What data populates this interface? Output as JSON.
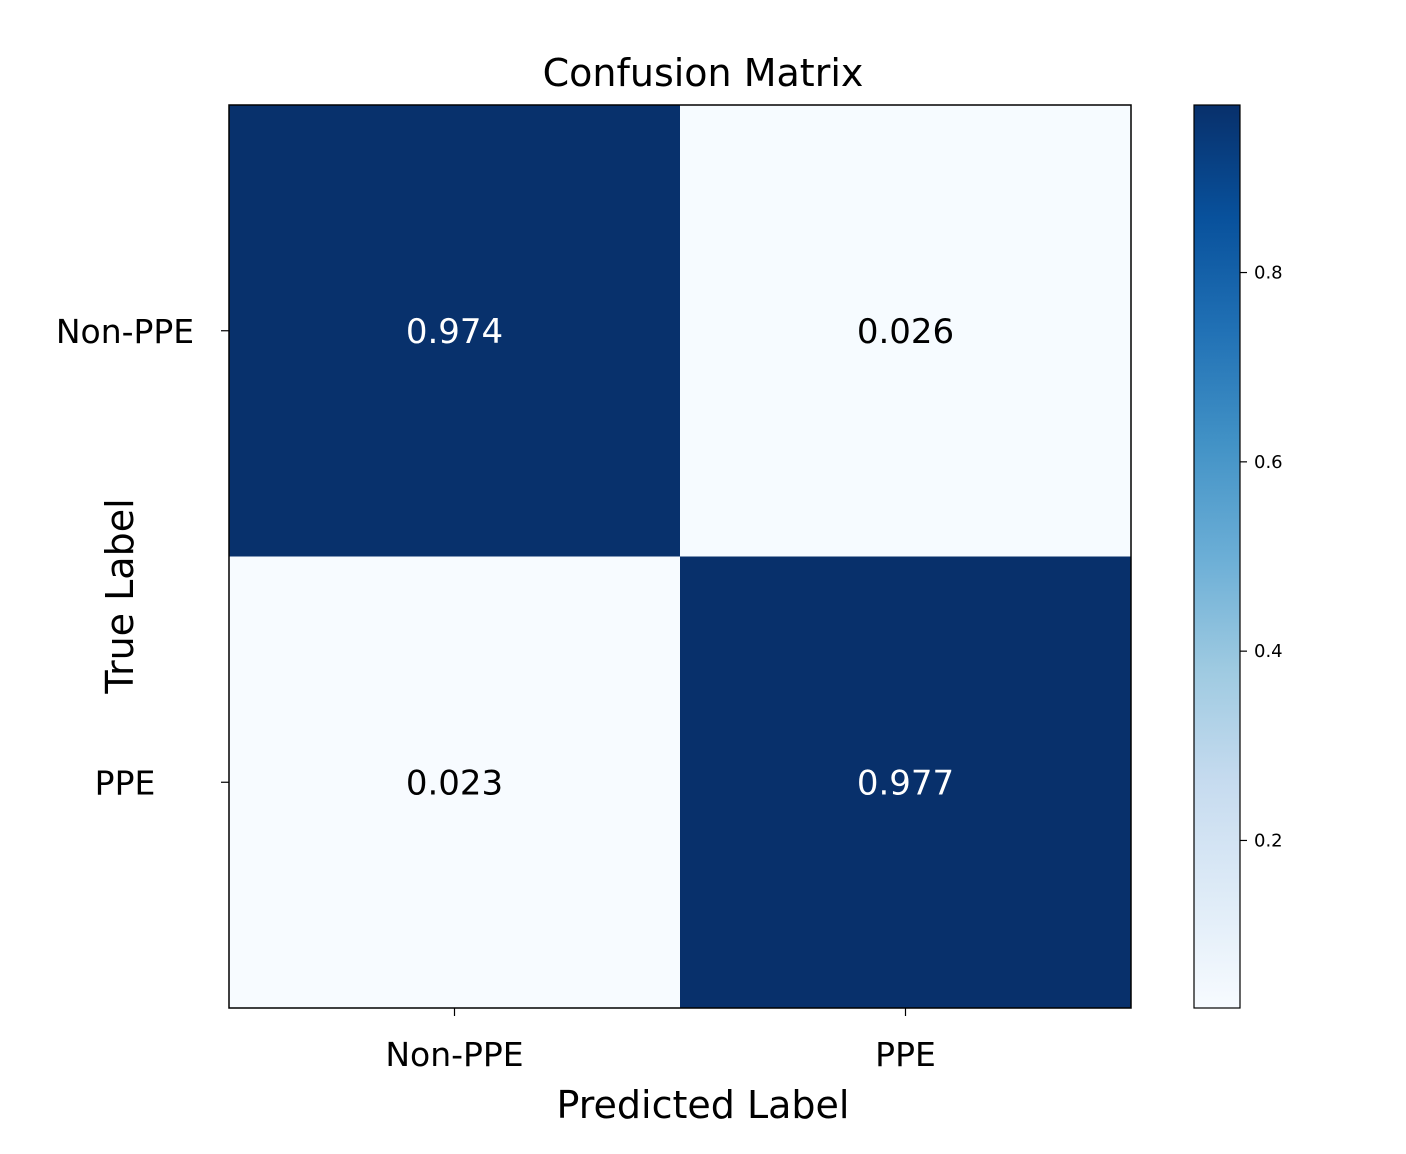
{
  "chart_data": {
    "type": "heatmap",
    "title": "Confusion Matrix",
    "xlabel": "Predicted Label",
    "ylabel": "True Label",
    "x_categories": [
      "Non-PPE",
      "PPE"
    ],
    "y_categories": [
      "Non-PPE",
      "PPE"
    ],
    "values": [
      [
        0.974,
        0.026
      ],
      [
        0.023,
        0.977
      ]
    ],
    "value_labels": [
      [
        "0.974",
        "0.026"
      ],
      [
        "0.023",
        "0.977"
      ]
    ],
    "colormap": "Blues",
    "colorbar": {
      "range": [
        0.023,
        0.977
      ],
      "ticks": [
        0.2,
        0.4,
        0.6,
        0.8
      ],
      "tick_labels": [
        "0.2",
        "0.4",
        "0.6",
        "0.8"
      ]
    },
    "grid": false
  }
}
